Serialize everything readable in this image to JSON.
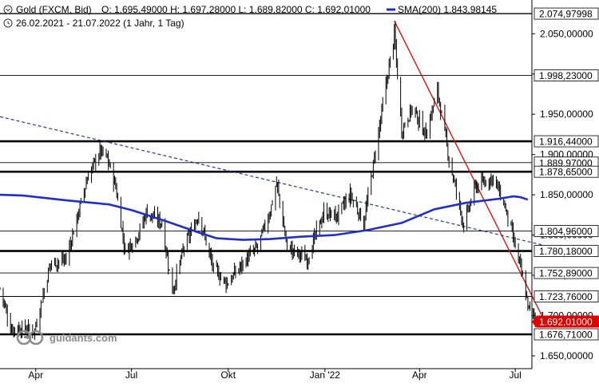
{
  "header": {
    "instrument": "Gold (FXCM, Bid)",
    "ohlc": "O: 1.695,49000  H: 1.697,28000  L: 1.689,82000  C: 1.692,01000",
    "sma_label": "SMA(200)  1.843,98145",
    "period": "26.02.2021 - 21.07.2022  (1 Jahr, 1 Tag)",
    "icons": [
      "collapse-icon",
      "clock-icon"
    ]
  },
  "watermark": {
    "logo": "guidants-logo-icon",
    "text": "guidants.com"
  },
  "colors": {
    "candles": "#000000",
    "sma": "#1f2fc7",
    "downtrend_line": "#e01010",
    "dashed_trend": "#1f3a9a",
    "close_marker": "#e00000"
  },
  "chart_data": {
    "type": "candlestick",
    "title": "Gold (FXCM, Bid)",
    "period": "26.02.2021 - 21.07.2022",
    "interval": "1 Tag",
    "last": {
      "open": 1695.49,
      "high": 1697.28,
      "low": 1689.82,
      "close": 1692.01
    },
    "sma200_last": 1843.98145,
    "ylim": [
      1644,
      2080
    ],
    "y_ticks": [
      {
        "value": 1650,
        "label": "1.650,00000"
      },
      {
        "value": 1700,
        "label": "1.700,00000"
      },
      {
        "value": 1750,
        "label": "1.750,00000"
      },
      {
        "value": 1800,
        "label": "1.800,00000"
      },
      {
        "value": 1850,
        "label": "1.850,00000"
      },
      {
        "value": 1900,
        "label": "1.900,00000"
      },
      {
        "value": 1950,
        "label": "1.950,00000"
      },
      {
        "value": 2000,
        "label": "2.000,00000"
      },
      {
        "value": 2050,
        "label": "2.050,00000"
      }
    ],
    "x_ticks": [
      {
        "date": "2021-04-01",
        "label": "Apr"
      },
      {
        "date": "2021-07-01",
        "label": "Jul"
      },
      {
        "date": "2021-10-01",
        "label": "Okt"
      },
      {
        "date": "2022-01-01",
        "label": "Jan '22"
      },
      {
        "date": "2022-04-01",
        "label": "Apr"
      },
      {
        "date": "2022-07-01",
        "label": "Jul"
      }
    ],
    "levels": [
      {
        "value": 2074.97998,
        "label": "2.074,97998",
        "weight": "normal"
      },
      {
        "value": 1998.23,
        "label": "1.998,23000",
        "weight": "thin"
      },
      {
        "value": 1916.44,
        "label": "1.916,44000",
        "weight": "bold"
      },
      {
        "value": 1889.97,
        "label": "1.889,97000",
        "weight": "thin"
      },
      {
        "value": 1878.65,
        "label": "1.878,65000",
        "weight": "bold"
      },
      {
        "value": 1804.96,
        "label": "1.804,96000",
        "weight": "thin"
      },
      {
        "value": 1780.18,
        "label": "1.780,18000",
        "weight": "bold"
      },
      {
        "value": 1752.89,
        "label": "1.752,89000",
        "weight": "thin"
      },
      {
        "value": 1723.76,
        "label": "1.723,76000",
        "weight": "thin"
      },
      {
        "value": 1676.71,
        "label": "1.676,71000",
        "weight": "bold"
      }
    ],
    "close_label": {
      "value": 1692.01,
      "label": "1.692,01000"
    },
    "price_path": [
      [
        "2021-02-26",
        1734
      ],
      [
        "2021-03-08",
        1685
      ],
      [
        "2021-03-31",
        1682
      ],
      [
        "2021-04-15",
        1765
      ],
      [
        "2021-04-30",
        1770
      ],
      [
        "2021-05-20",
        1870
      ],
      [
        "2021-06-01",
        1905
      ],
      [
        "2021-06-08",
        1895
      ],
      [
        "2021-06-16",
        1860
      ],
      [
        "2021-06-25",
        1780
      ],
      [
        "2021-07-08",
        1802
      ],
      [
        "2021-07-15",
        1828
      ],
      [
        "2021-07-30",
        1815
      ],
      [
        "2021-08-09",
        1730
      ],
      [
        "2021-08-20",
        1785
      ],
      [
        "2021-09-03",
        1825
      ],
      [
        "2021-09-17",
        1758
      ],
      [
        "2021-09-30",
        1740
      ],
      [
        "2021-10-15",
        1765
      ],
      [
        "2021-10-29",
        1785
      ],
      [
        "2021-11-10",
        1830
      ],
      [
        "2021-11-16",
        1865
      ],
      [
        "2021-11-26",
        1785
      ],
      [
        "2021-12-15",
        1770
      ],
      [
        "2021-12-31",
        1828
      ],
      [
        "2022-01-12",
        1823
      ],
      [
        "2022-01-25",
        1850
      ],
      [
        "2022-02-07",
        1815
      ],
      [
        "2022-02-17",
        1895
      ],
      [
        "2022-03-08",
        2050
      ],
      [
        "2022-03-15",
        1930
      ],
      [
        "2022-03-25",
        1958
      ],
      [
        "2022-04-07",
        1925
      ],
      [
        "2022-04-18",
        1980
      ],
      [
        "2022-04-29",
        1895
      ],
      [
        "2022-05-13",
        1812
      ],
      [
        "2022-05-24",
        1860
      ],
      [
        "2022-06-10",
        1872
      ],
      [
        "2022-06-21",
        1836
      ],
      [
        "2022-07-05",
        1765
      ],
      [
        "2022-07-14",
        1708
      ],
      [
        "2022-07-21",
        1692
      ]
    ],
    "sma200": [
      [
        "2021-02-26",
        1850
      ],
      [
        "2021-03-20",
        1849
      ],
      [
        "2021-05-01",
        1843
      ],
      [
        "2021-06-10",
        1838
      ],
      [
        "2021-07-01",
        1831
      ],
      [
        "2021-08-01",
        1818
      ],
      [
        "2021-09-01",
        1804
      ],
      [
        "2021-09-20",
        1796
      ],
      [
        "2021-10-15",
        1794
      ],
      [
        "2021-11-10",
        1795
      ],
      [
        "2021-12-10",
        1798
      ],
      [
        "2022-01-10",
        1800
      ],
      [
        "2022-02-10",
        1806
      ],
      [
        "2022-03-15",
        1815
      ],
      [
        "2022-04-15",
        1832
      ],
      [
        "2022-05-15",
        1840
      ],
      [
        "2022-06-15",
        1845
      ],
      [
        "2022-06-29",
        1848
      ],
      [
        "2022-07-06",
        1847
      ],
      [
        "2022-07-13",
        1844
      ]
    ],
    "downtrend_line": [
      [
        "2022-03-08",
        2066
      ],
      [
        "2022-07-29",
        1693
      ]
    ],
    "dashed_trend": [
      [
        "2021-02-26",
        1947
      ],
      [
        "2022-07-29",
        1787
      ]
    ],
    "grid": false
  }
}
